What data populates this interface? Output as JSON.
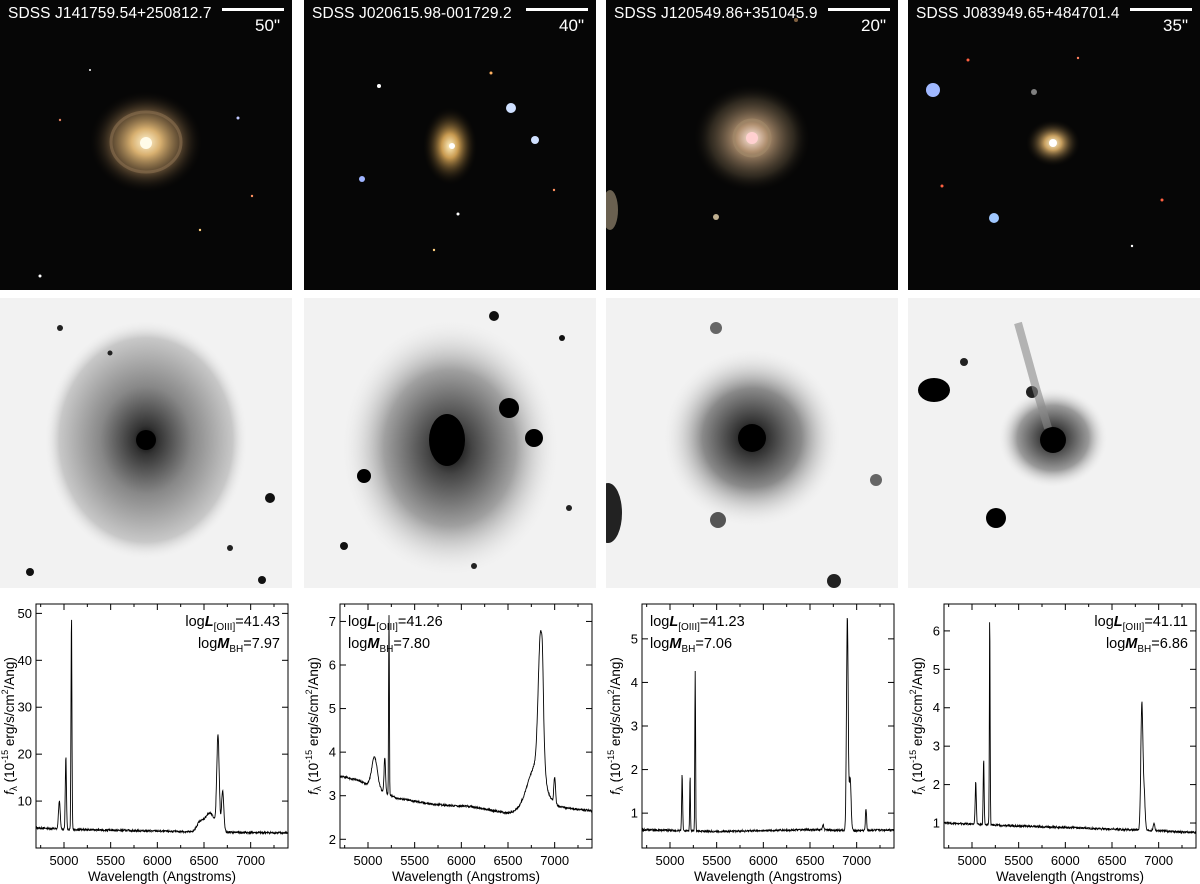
{
  "objects": [
    {
      "name": "SDSS J141759.54+250812.7",
      "scale": "50\"",
      "log_L_OIII": "41.43",
      "log_M_BH": "7.97",
      "ann_pos": "top-right"
    },
    {
      "name": "SDSS J020615.98-001729.2",
      "scale": "40\"",
      "log_L_OIII": "41.26",
      "log_M_BH": "7.80",
      "ann_pos": "top-left"
    },
    {
      "name": "SDSS J120549.86+351045.9",
      "scale": "20\"",
      "log_L_OIII": "41.23",
      "log_M_BH": "7.06",
      "ann_pos": "top-left"
    },
    {
      "name": "SDSS J083949.65+484701.4",
      "scale": "35\"",
      "log_L_OIII": "41.11",
      "log_M_BH": "6.86",
      "ann_pos": "top-right"
    }
  ],
  "labels": {
    "xlabel": "Wavelength (Angstroms)",
    "ylabel_f": "f",
    "ylabel_sub": "λ",
    "ylabel_pre": " (10",
    "ylabel_exp": "-15",
    "ylabel_mid": " erg/s/cm",
    "ylabel_exp2": "2",
    "ylabel_post": "/Ang)",
    "L_prefix": "log",
    "L_sym": "L",
    "L_sub": "[OIII]",
    "M_prefix": "log",
    "M_sym": "M",
    "M_sub": "BH",
    "eq": "="
  },
  "chart_data": [
    {
      "type": "line",
      "xlabel": "Wavelength (Angstroms)",
      "xlim": [
        4700,
        7400
      ],
      "ylim": [
        0,
        52
      ],
      "xticks": [
        5000,
        5500,
        6000,
        6500,
        7000
      ],
      "yticks": [
        10,
        20,
        30,
        40,
        50
      ],
      "continuum": [
        [
          4700,
          4.3
        ],
        [
          5000,
          4.0
        ],
        [
          5500,
          3.8
        ],
        [
          6000,
          3.6
        ],
        [
          6500,
          3.4
        ],
        [
          7000,
          3.3
        ],
        [
          7400,
          3.2
        ]
      ],
      "lines": [
        {
          "x": 4950,
          "h": 6.0,
          "w": 9
        },
        {
          "x": 5020,
          "h": 15.5,
          "w": 6
        },
        {
          "x": 5080,
          "h": 45.5,
          "w": 5
        },
        {
          "x": 6450,
          "h": 1.5,
          "w": 30
        },
        {
          "x": 6560,
          "h": 4.0,
          "w": 60
        },
        {
          "x": 6650,
          "h": 19.5,
          "w": 13
        },
        {
          "x": 6700,
          "h": 8.5,
          "w": 12
        }
      ]
    },
    {
      "type": "line",
      "xlabel": "Wavelength (Angstroms)",
      "xlim": [
        4700,
        7400
      ],
      "ylim": [
        1.8,
        7.4
      ],
      "xticks": [
        5000,
        5500,
        6000,
        6500,
        7000
      ],
      "yticks": [
        2,
        3,
        4,
        5,
        6,
        7
      ],
      "continuum": [
        [
          4700,
          3.45
        ],
        [
          4900,
          3.35
        ],
        [
          5300,
          2.95
        ],
        [
          5700,
          2.8
        ],
        [
          6100,
          2.75
        ],
        [
          6500,
          2.6
        ],
        [
          7000,
          2.75
        ],
        [
          7400,
          2.65
        ]
      ],
      "lines": [
        {
          "x": 5070,
          "h": 0.7,
          "w": 30
        },
        {
          "x": 5180,
          "h": 0.8,
          "w": 8
        },
        {
          "x": 5225,
          "h": 4.1,
          "w": 4
        },
        {
          "x": 6800,
          "h": 1.0,
          "w": 90
        },
        {
          "x": 6850,
          "h": 3.2,
          "w": 25
        },
        {
          "x": 6870,
          "h": 0.6,
          "w": 8
        },
        {
          "x": 7000,
          "h": 0.6,
          "w": 9
        }
      ]
    },
    {
      "type": "line",
      "xlabel": "Wavelength (Angstroms)",
      "xlim": [
        4700,
        7400
      ],
      "ylim": [
        0.2,
        5.8
      ],
      "xticks": [
        5000,
        5500,
        6000,
        6500,
        7000
      ],
      "yticks": [
        1,
        2,
        3,
        4,
        5
      ],
      "continuum": [
        [
          4700,
          0.62
        ],
        [
          5500,
          0.58
        ],
        [
          6000,
          0.6
        ],
        [
          6500,
          0.62
        ],
        [
          7000,
          0.6
        ],
        [
          7400,
          0.62
        ]
      ],
      "lines": [
        {
          "x": 5130,
          "h": 1.3,
          "w": 5
        },
        {
          "x": 5215,
          "h": 1.25,
          "w": 4
        },
        {
          "x": 5270,
          "h": 3.65,
          "w": 4
        },
        {
          "x": 6900,
          "h": 4.9,
          "w": 9
        },
        {
          "x": 6930,
          "h": 1.2,
          "w": 10
        },
        {
          "x": 6640,
          "h": 0.12,
          "w": 8
        },
        {
          "x": 7100,
          "h": 0.5,
          "w": 6
        }
      ]
    },
    {
      "type": "line",
      "xlabel": "Wavelength (Angstroms)",
      "xlim": [
        4700,
        7400
      ],
      "ylim": [
        0.35,
        6.7
      ],
      "xticks": [
        5000,
        5500,
        6000,
        6500,
        7000
      ],
      "yticks": [
        1,
        2,
        3,
        4,
        5,
        6
      ],
      "continuum": [
        [
          4700,
          1.0
        ],
        [
          5200,
          0.95
        ],
        [
          5800,
          0.9
        ],
        [
          6400,
          0.85
        ],
        [
          7000,
          0.8
        ],
        [
          7400,
          0.75
        ]
      ],
      "lines": [
        {
          "x": 5040,
          "h": 1.1,
          "w": 6
        },
        {
          "x": 5125,
          "h": 1.7,
          "w": 5
        },
        {
          "x": 5190,
          "h": 5.45,
          "w": 4
        },
        {
          "x": 6820,
          "h": 3.3,
          "w": 11
        },
        {
          "x": 6845,
          "h": 0.9,
          "w": 10
        },
        {
          "x": 6950,
          "h": 0.2,
          "w": 8
        }
      ]
    }
  ]
}
